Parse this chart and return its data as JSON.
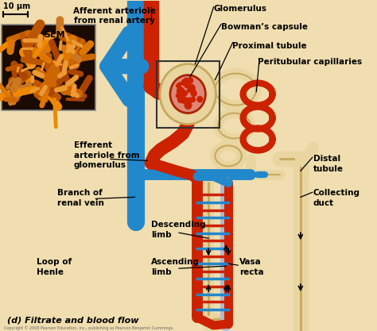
{
  "title": "(d) Filtrate and blood flow",
  "background_color": "#f0deb0",
  "copyright": "Copyright © 2008 Pearson Education, Inc., publishing as Pearson Benjamin Cummings.",
  "sem_label": "SEM",
  "scale_label": "10 μm",
  "colors": {
    "red": "#cc2200",
    "blue": "#2288cc",
    "cream": "#e8d5a0",
    "cream_dark": "#c8a860",
    "light_purple": "#b0b8d0",
    "background": "#f0deb0",
    "sem_dark": "#1a0a00",
    "sem_orange": "#cc6600",
    "box_outline": "#333333"
  }
}
